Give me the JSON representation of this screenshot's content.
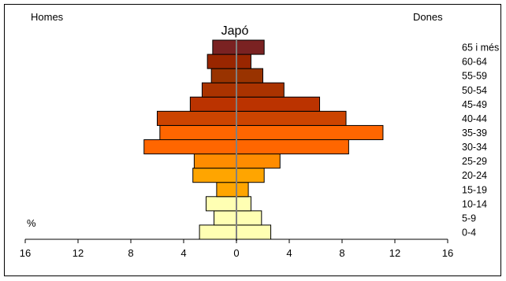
{
  "chart_data": {
    "type": "bar",
    "title": "Japó",
    "left_label": "Homes",
    "right_label": "Dones",
    "unit_label": "%",
    "xlim": [
      -16,
      16
    ],
    "x_ticks": [
      -16,
      -12,
      -8,
      -4,
      0,
      4,
      8,
      12,
      16
    ],
    "x_tick_labels": [
      "16",
      "12",
      "8",
      "4",
      "0",
      "4",
      "8",
      "12",
      "16"
    ],
    "categories": [
      "0-4",
      "5-9",
      "10-14",
      "15-19",
      "20-24",
      "25-29",
      "30-34",
      "35-39",
      "40-44",
      "45-49",
      "50-54",
      "55-59",
      "60-64",
      "65 i més"
    ],
    "series": [
      {
        "name": "Homes",
        "values": [
          2.8,
          1.7,
          2.3,
          1.5,
          3.3,
          3.2,
          7.0,
          5.8,
          6.0,
          3.5,
          2.6,
          1.9,
          2.2,
          1.8
        ]
      },
      {
        "name": "Dones",
        "values": [
          2.6,
          1.9,
          1.1,
          0.9,
          2.1,
          3.3,
          8.5,
          11.1,
          8.3,
          6.3,
          3.6,
          2.0,
          1.1,
          2.1
        ]
      }
    ],
    "bar_colors": [
      "#ffffb3",
      "#ffffb3",
      "#ffffb3",
      "#ffa500",
      "#ffa500",
      "#ff8c00",
      "#ff6600",
      "#ff6600",
      "#cc4400",
      "#bb3300",
      "#aa3300",
      "#993300",
      "#992600",
      "#7a2222"
    ],
    "grid": false
  }
}
